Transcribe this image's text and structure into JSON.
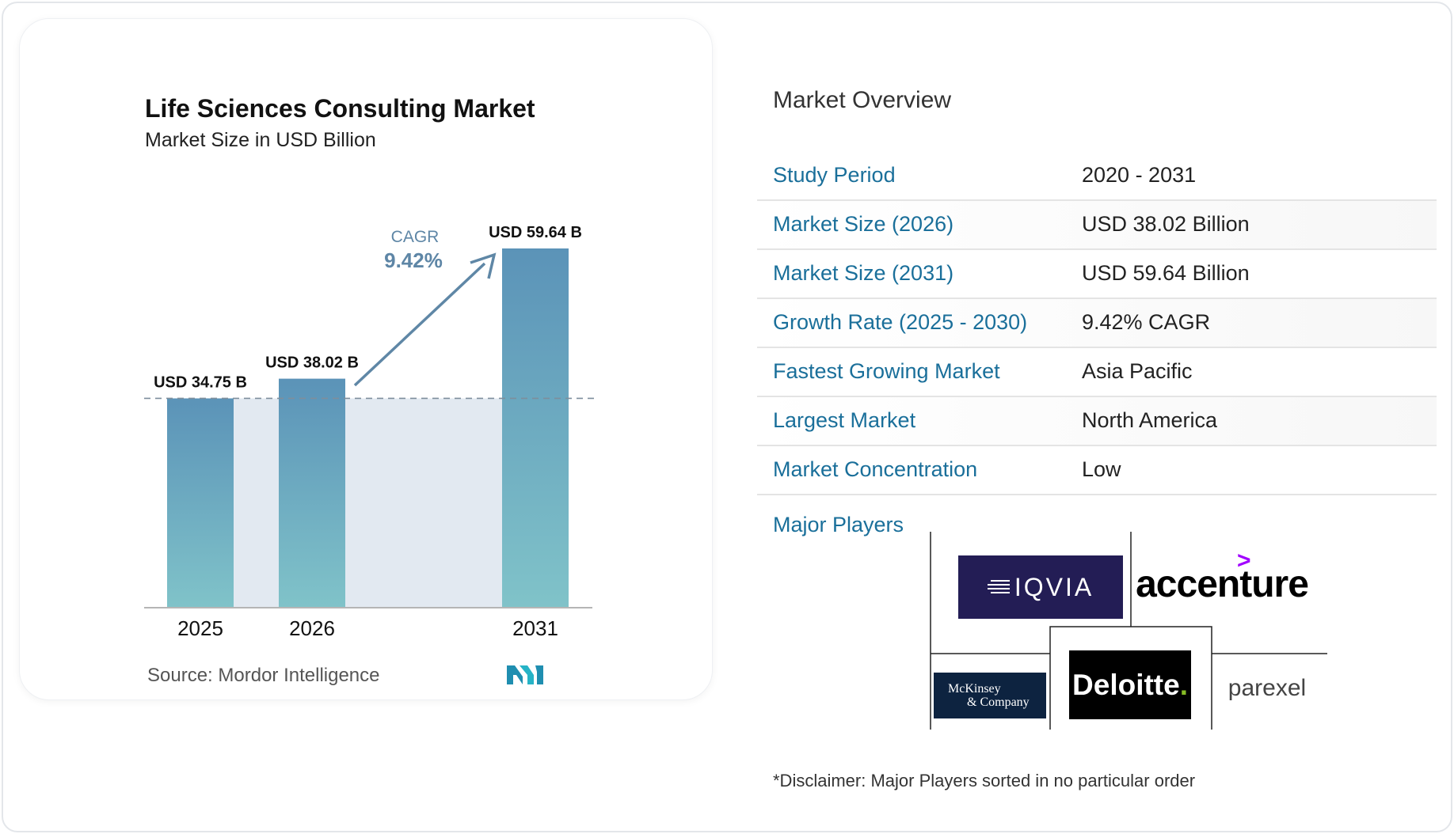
{
  "chart_data": {
    "type": "bar",
    "title": "Life Sciences Consulting Market",
    "subtitle": "Market Size in USD Billion",
    "categories": [
      "2025",
      "2026",
      "2031"
    ],
    "values": [
      34.75,
      38.02,
      59.64
    ],
    "data_labels": [
      "USD 34.75 B",
      "USD 38.02 B",
      "USD 59.64 B"
    ],
    "cagr_label": "CAGR",
    "cagr_value": "9.42%",
    "ylim": [
      0,
      59.64
    ],
    "grid": false,
    "colors": {
      "bar_top": "#5b93b8",
      "bar_bottom": "#80c3c9",
      "band": "#e2e9f1",
      "arrow": "#5f87a6",
      "cagr_text": "#5e86a6"
    }
  },
  "source_label": "Source:",
  "source_name": "Mordor Intelligence",
  "overview": {
    "title": "Market Overview",
    "rows": [
      {
        "label": "Study Period",
        "value": "2020 - 2031"
      },
      {
        "label": "Market Size (2026)",
        "value": "USD 38.02 Billion"
      },
      {
        "label": "Market Size (2031)",
        "value": "USD 59.64 Billion"
      },
      {
        "label": "Growth Rate (2025 - 2030)",
        "value": "9.42% CAGR"
      },
      {
        "label": "Fastest Growing Market",
        "value": "Asia Pacific"
      },
      {
        "label": "Largest Market",
        "value": "North America"
      },
      {
        "label": "Market Concentration",
        "value": "Low"
      }
    ]
  },
  "major_players": {
    "label": "Major Players",
    "logos": {
      "iqvia": "IQVIA",
      "accenture": "accenture",
      "mckinsey_line1": "McKinsey",
      "mckinsey_line2": "& Company",
      "deloitte": "Deloitte",
      "deloitte_dot": ".",
      "parexel": "parexel"
    }
  },
  "disclaimer": "*Disclaimer: Major Players sorted in no particular order",
  "colors": {
    "accent": "#1a6f9a",
    "iqvia_bg": "#231d55",
    "accenture_gt": "#a100ff",
    "mckinsey_bg": "#0d2340",
    "deloitte_green": "#86bc25"
  }
}
